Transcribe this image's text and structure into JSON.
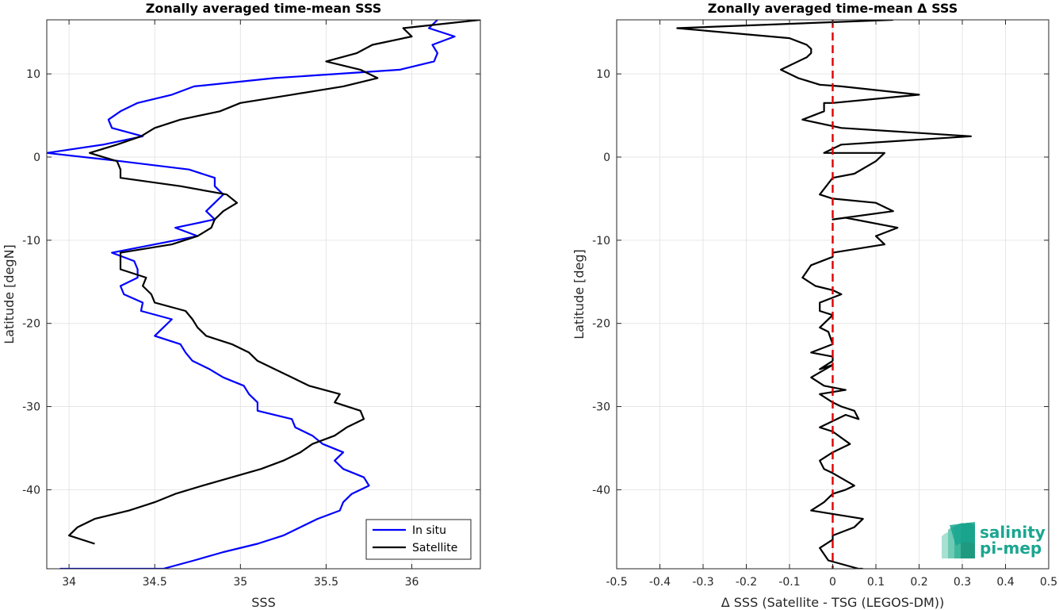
{
  "chart_data": [
    {
      "type": "line",
      "title": "Zonally averaged time-mean SSS",
      "xlabel": "SSS",
      "ylabel": "Latitude [degN]",
      "xlim": [
        33.87,
        36.4
      ],
      "ylim": [
        -49.5,
        16.5
      ],
      "xticks": [
        34,
        34.5,
        35,
        35.5,
        36
      ],
      "xtick_labels": [
        "34",
        "34.5",
        "35",
        "35.5",
        "36"
      ],
      "yticks": [
        10,
        0,
        -10,
        -20,
        -30,
        -40
      ],
      "ytick_labels": [
        "10",
        "0",
        "-10",
        "-20",
        "-30",
        "-40"
      ],
      "grid": true,
      "legend": "bottom-right",
      "series": [
        {
          "name": "In situ",
          "color": "#0000ff",
          "x": [
            36.15,
            36.1,
            36.25,
            36.12,
            36.15,
            36.13,
            35.93,
            35.2,
            34.73,
            34.6,
            34.4,
            34.3,
            34.23,
            34.25,
            34.43,
            34.2,
            33.87,
            34.3,
            34.7,
            34.85,
            34.85,
            34.9,
            34.85,
            34.8,
            34.85,
            34.62,
            34.75,
            34.5,
            34.25,
            34.38,
            34.4,
            34.4,
            34.3,
            34.32,
            34.43,
            34.42,
            34.6,
            34.55,
            34.5,
            34.65,
            34.68,
            34.72,
            34.82,
            34.9,
            35.02,
            35.05,
            35.1,
            35.1,
            35.3,
            35.32,
            35.42,
            35.48,
            35.6,
            35.55,
            35.6,
            35.72,
            35.75,
            35.65,
            35.6,
            35.58,
            35.45,
            35.35,
            35.25,
            35.1,
            34.9,
            34.73,
            34.55,
            34.38,
            34.1,
            34.03,
            33.95,
            34.0
          ],
          "y": [
            16.5,
            15.5,
            14.5,
            13.5,
            12.5,
            11.5,
            10.5,
            9.5,
            8.5,
            7.5,
            6.5,
            5.5,
            4.5,
            3.5,
            2.5,
            1.5,
            0.5,
            -0.5,
            -1.5,
            -2.5,
            -3.5,
            -4.5,
            -5.5,
            -6.5,
            -7.5,
            -8.5,
            -9.5,
            -10.5,
            -11.5,
            -12.5,
            -13.5,
            -14.5,
            -15.5,
            -16.5,
            -17.5,
            -18.5,
            -19.5,
            -20.5,
            -21.5,
            -22.5,
            -23.5,
            -24.5,
            -25.5,
            -26.5,
            -27.5,
            -28.5,
            -29.5,
            -30.5,
            -31.5,
            -32.5,
            -33.5,
            -34.5,
            -35.5,
            -36.5,
            -37.5,
            -38.5,
            -39.5,
            -40.5,
            -41.5,
            -42.5,
            -43.5,
            -44.5,
            -45.5,
            -46.5,
            -47.5,
            -48.5,
            -49.5,
            -49.5,
            -49.5,
            -49.5,
            -49.5,
            -49.5
          ]
        },
        {
          "name": "Satellite",
          "color": "#000000",
          "x": [
            36.4,
            35.95,
            36.0,
            35.77,
            35.68,
            35.5,
            35.7,
            35.8,
            35.6,
            35.3,
            35.0,
            34.88,
            34.65,
            34.5,
            34.42,
            34.28,
            34.12,
            34.28,
            34.3,
            34.3,
            34.65,
            34.92,
            34.98,
            34.9,
            34.85,
            34.83,
            34.75,
            34.6,
            34.3,
            34.3,
            34.3,
            34.45,
            34.43,
            34.48,
            34.5,
            34.68,
            34.72,
            34.75,
            34.8,
            34.95,
            35.05,
            35.1,
            35.2,
            35.3,
            35.4,
            35.58,
            35.55,
            35.7,
            35.72,
            35.62,
            35.55,
            35.42,
            35.35,
            35.25,
            35.12,
            34.95,
            34.78,
            34.62,
            34.5,
            34.35,
            34.15,
            34.05,
            34.0,
            34.15
          ],
          "y": [
            16.5,
            15.5,
            14.5,
            13.5,
            12.5,
            11.5,
            10.5,
            9.5,
            8.5,
            7.5,
            6.5,
            5.5,
            4.5,
            3.5,
            2.5,
            1.5,
            0.5,
            -0.5,
            -1.5,
            -2.5,
            -3.5,
            -4.5,
            -5.5,
            -6.5,
            -7.5,
            -8.5,
            -9.5,
            -10.5,
            -11.5,
            -12.5,
            -13.5,
            -14.5,
            -15.5,
            -16.5,
            -17.5,
            -18.5,
            -19.5,
            -20.5,
            -21.5,
            -22.5,
            -23.5,
            -24.5,
            -25.5,
            -26.5,
            -27.5,
            -28.5,
            -29.5,
            -30.5,
            -31.5,
            -32.5,
            -33.5,
            -34.5,
            -35.5,
            -36.5,
            -37.5,
            -38.5,
            -39.5,
            -40.5,
            -41.5,
            -42.5,
            -43.5,
            -44.5,
            -45.5,
            -46.5
          ]
        }
      ]
    },
    {
      "type": "line",
      "title": "Zonally averaged time-mean Δ SSS",
      "xlabel": "Δ SSS (Satellite - TSG (LEGOS-DM))",
      "ylabel": "Latitude [deg]",
      "xlim": [
        -0.5,
        0.5
      ],
      "ylim": [
        -49.5,
        16.5
      ],
      "xticks": [
        -0.5,
        -0.4,
        -0.3,
        -0.2,
        -0.1,
        0,
        0.1,
        0.2,
        0.3,
        0.4,
        0.5
      ],
      "xtick_labels": [
        "-0.5",
        "-0.4",
        "-0.3",
        "-0.2",
        "-0.1",
        "0",
        "0.1",
        "0.2",
        "0.3",
        "0.4",
        "0.5"
      ],
      "yticks": [
        10,
        0,
        -10,
        -20,
        -30,
        -40
      ],
      "ytick_labels": [
        "10",
        "0",
        "-10",
        "-20",
        "-30",
        "-40"
      ],
      "grid": true,
      "reference_line": {
        "x": 0,
        "color": "#dd0000",
        "style": "dashed"
      },
      "series": [
        {
          "color": "#000000",
          "x": [
            0.14,
            -0.36,
            -0.1,
            -0.06,
            -0.05,
            -0.05,
            -0.06,
            -0.12,
            -0.08,
            -0.03,
            0.02,
            0.2,
            0.0,
            -0.02,
            -0.02,
            -0.07,
            0.02,
            0.32,
            0.02,
            -0.02,
            0.12,
            0.1,
            0.1,
            0.05,
            0.0,
            -0.03,
            0.0,
            0.1,
            0.14,
            0.0,
            0.03,
            0.15,
            0.1,
            0.12,
            0.0,
            0.0,
            -0.05,
            -0.07,
            -0.04,
            0.0,
            0.02,
            -0.03,
            -0.03,
            0.0,
            -0.03,
            -0.01,
            0.0,
            -0.05,
            0.0,
            0.0,
            -0.03,
            0.0,
            -0.05,
            -0.02,
            0.03,
            -0.03,
            0.0,
            0.02,
            0.05,
            0.06,
            0.03,
            -0.03,
            0.0,
            0.04,
            0.0,
            -0.03,
            -0.02,
            0.0,
            0.05,
            0.03,
            0.0,
            -0.02,
            -0.05,
            0.07,
            0.05,
            0.0,
            0.0,
            -0.03,
            -0.01,
            0.06,
            0.07
          ],
          "y": [
            16.5,
            15.5,
            14.3,
            13.5,
            13.0,
            12.5,
            12.0,
            10.5,
            9.5,
            8.7,
            8.5,
            7.5,
            6.5,
            6.5,
            5.5,
            4.5,
            3.5,
            2.5,
            1.5,
            0.5,
            0.5,
            -0.5,
            -0.5,
            -2.0,
            -2.5,
            -4.5,
            -5.0,
            -5.5,
            -6.5,
            -7.5,
            -7.3,
            -8.5,
            -9.5,
            -10.5,
            -11.5,
            -12.0,
            -13.0,
            -14.5,
            -15.5,
            -16.0,
            -16.5,
            -17.5,
            -18.5,
            -19.0,
            -20.5,
            -21.0,
            -22.5,
            -23.5,
            -24.0,
            -24.5,
            -25.5,
            -25.0,
            -26.5,
            -27.5,
            -28.0,
            -28.5,
            -29.5,
            -30.0,
            -30.5,
            -31.5,
            -31.0,
            -32.5,
            -33.0,
            -34.5,
            -35.5,
            -36.5,
            -37.5,
            -38.0,
            -39.5,
            -40.0,
            -40.5,
            -41.5,
            -42.5,
            -43.5,
            -44.5,
            -45.5,
            -46.0,
            -47.0,
            -48.5,
            -49.5,
            -49.5
          ]
        }
      ]
    }
  ],
  "logo": {
    "line1": "salinity",
    "line2": "pi-mep"
  }
}
